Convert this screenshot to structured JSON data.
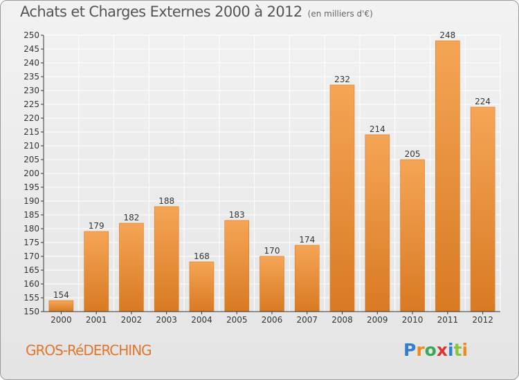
{
  "header": {
    "title": "Achats et Charges Externes 2000 à 2012",
    "subtitle": "(en milliers d'€)"
  },
  "footer": {
    "municipality": "GROS-RéDERCHING",
    "logo_letters": [
      "P",
      "r",
      "o",
      "x",
      "i",
      "t",
      "i"
    ],
    "logo_colors": [
      "#2f7fd6",
      "#f08a1f",
      "#3aa856",
      "#e0332f",
      "#2f7fd6",
      "#8bc43f",
      "#f08a1f"
    ]
  },
  "colors": {
    "bar_light": "#f5a556",
    "bar_dark": "#d87a22",
    "grid": "#ffffff",
    "axis": "#333333"
  },
  "chart_data": {
    "type": "bar",
    "title": "Achats et Charges Externes 2000 à 2012",
    "subtitle": "(en milliers d'€)",
    "categories": [
      "2000",
      "2001",
      "2002",
      "2003",
      "2004",
      "2005",
      "2006",
      "2007",
      "2008",
      "2009",
      "2010",
      "2011",
      "2012"
    ],
    "values": [
      154,
      179,
      182,
      188,
      168,
      183,
      170,
      174,
      232,
      214,
      205,
      248,
      224
    ],
    "ylim": [
      150,
      250
    ],
    "yticks": [
      150,
      155,
      160,
      165,
      170,
      175,
      180,
      185,
      190,
      195,
      200,
      205,
      210,
      215,
      220,
      225,
      230,
      235,
      240,
      245,
      250
    ],
    "grid": true,
    "data_labels": true
  }
}
